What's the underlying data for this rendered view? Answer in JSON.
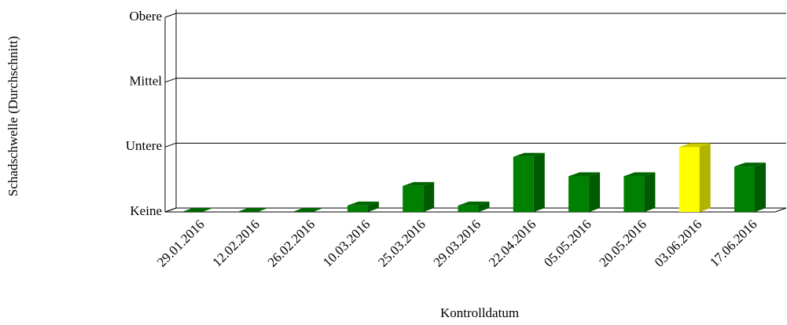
{
  "chart_data": {
    "type": "bar",
    "xlabel": "Kontrolldatum",
    "ylabel": "Schadschwelle (Durchschnitt)",
    "categories": [
      "29.01.2016",
      "12.02.2016",
      "26.02.2016",
      "10.03.2016",
      "25.03.2016",
      "29.03.2016",
      "22.04.2016",
      "05.05.2016",
      "20.05.2016",
      "03.06.2016",
      "17.06.2016"
    ],
    "values": [
      0,
      0,
      0,
      0.1,
      0.4,
      0.1,
      0.85,
      0.55,
      0.55,
      1.0,
      0.7
    ],
    "colors": [
      "#008000",
      "#008000",
      "#008000",
      "#008000",
      "#008000",
      "#008000",
      "#008000",
      "#008000",
      "#008000",
      "#ffff00",
      "#008000"
    ],
    "ylim": [
      0,
      3
    ],
    "yticks": [
      {
        "value": 0,
        "label": "Keine"
      },
      {
        "value": 1,
        "label": "Untere"
      },
      {
        "value": 2,
        "label": "Mittel"
      },
      {
        "value": 3,
        "label": "Obere"
      }
    ],
    "grid": true
  }
}
